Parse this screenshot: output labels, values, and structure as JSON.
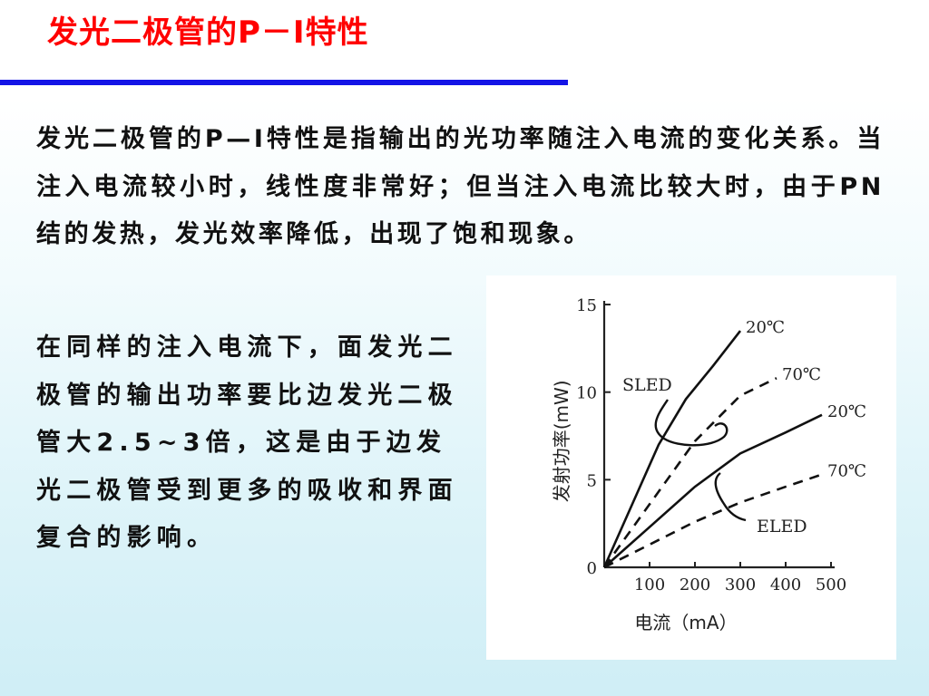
{
  "title": "发光二极管的P－I特性",
  "paragraph1": "发光二极管的P—I特性是指输出的光功率随注入电流的变化关系。当注入电流较小时，线性度非常好；但当注入电流比较大时，由于PN结的发热，发光效率降低，出现了饱和现象。",
  "paragraph2": "在同样的注入电流下，面发光二极管的输出功率要比边发光二极管大2.5~3倍，这是由于边发光二极管受到更多的吸收和界面复合的影响。",
  "chart_data": {
    "type": "line",
    "xlabel": "电流（mA）",
    "ylabel": "发射功率(mW)",
    "x_ticks": [
      "100",
      "200",
      "300",
      "400",
      "500"
    ],
    "y_ticks": [
      "0",
      "5",
      "10",
      "15"
    ],
    "xlim": [
      0,
      520
    ],
    "ylim": [
      0,
      15
    ],
    "series": [
      {
        "name": "SLED",
        "label": "20℃",
        "style": "solid",
        "x": [
          0,
          60,
          120,
          180,
          240,
          300
        ],
        "y": [
          0,
          3.5,
          7,
          9.6,
          11.5,
          13.5
        ]
      },
      {
        "name": "SLED",
        "label": "70℃",
        "style": "dashed",
        "x": [
          0,
          100,
          200,
          300,
          380
        ],
        "y": [
          0,
          3.6,
          7.2,
          9.8,
          10.8
        ]
      },
      {
        "name": "ELED",
        "label": "20℃",
        "style": "solid",
        "x": [
          0,
          100,
          200,
          300,
          400,
          480
        ],
        "y": [
          0,
          2.3,
          4.6,
          6.5,
          7.7,
          8.7
        ]
      },
      {
        "name": "ELED",
        "label": "70℃",
        "style": "dashed",
        "x": [
          0,
          100,
          200,
          300,
          400,
          480
        ],
        "y": [
          0,
          1.3,
          2.6,
          3.7,
          4.6,
          5.3
        ]
      }
    ]
  }
}
